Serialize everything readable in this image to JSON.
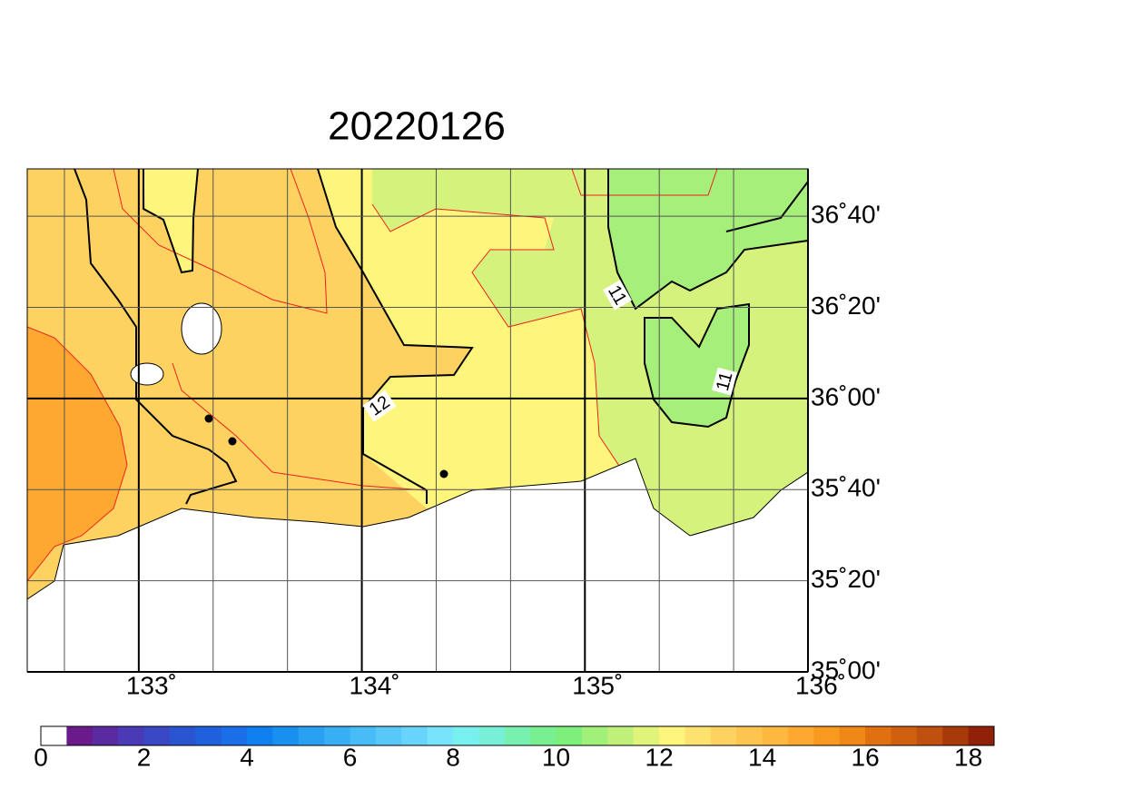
{
  "title": "20220126",
  "map": {
    "xlim": [
      132.5,
      136
    ],
    "ylim": [
      35,
      36.84
    ],
    "xticks": [
      {
        "value": 133,
        "label": "133˚"
      },
      {
        "value": 134,
        "label": "134˚"
      },
      {
        "value": 135,
        "label": "135˚"
      },
      {
        "value": 136,
        "label": "136˚"
      }
    ],
    "yticks": [
      {
        "value": 35,
        "label": "35˚00'"
      },
      {
        "value": 35.3333,
        "label": "35˚20'"
      },
      {
        "value": 35.6667,
        "label": "35˚40'"
      },
      {
        "value": 36,
        "label": "36˚00'"
      },
      {
        "value": 36.3333,
        "label": "36˚20'"
      },
      {
        "value": 36.6667,
        "label": "36˚40'"
      }
    ],
    "contour_labels": [
      "12",
      "11",
      "11"
    ]
  },
  "colorbar": {
    "lim": [
      0,
      18.5
    ],
    "ticks": [
      0,
      2,
      4,
      6,
      8,
      10,
      12,
      14,
      16,
      18
    ],
    "colors": [
      "#ffffff",
      "#6a1a8a",
      "#5a2aa0",
      "#4a3ab5",
      "#3a48c5",
      "#2a55d0",
      "#2060dc",
      "#1a6ee8",
      "#1080f0",
      "#1890f0",
      "#2aa0f2",
      "#38aef4",
      "#48bcf6",
      "#58c8f8",
      "#68d4fa",
      "#78e4fc",
      "#78f0f0",
      "#78f0d8",
      "#78f0b0",
      "#78f090",
      "#7cf07a",
      "#a0f07a",
      "#c0f07a",
      "#e0f47a",
      "#fef57c",
      "#fde26e",
      "#fdd260",
      "#fdc450",
      "#fdb840",
      "#fda830",
      "#f89a20",
      "#f08818",
      "#e07010",
      "#d06010",
      "#c05010",
      "#a83a0a",
      "#902008"
    ]
  }
}
